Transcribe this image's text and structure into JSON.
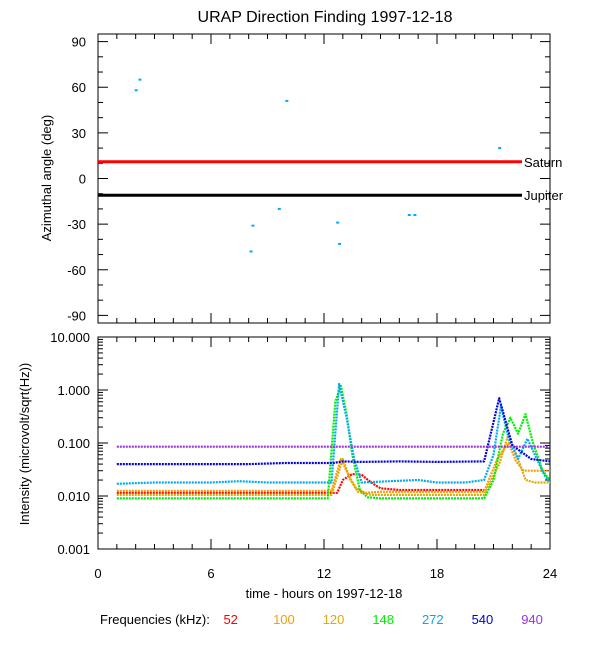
{
  "chart_data": [
    {
      "type": "scatter",
      "title": "URAP Direction Finding  1997-12-18",
      "ylabel": "Azimuthal angle (deg)",
      "xlim": [
        0,
        24
      ],
      "ylim": [
        -95,
        95
      ],
      "y_ticks": [
        90,
        60,
        30,
        0,
        -30,
        -60,
        -90
      ],
      "y_tick_labels": [
        "90",
        "60",
        "30",
        "0",
        "-30",
        "-60",
        "-90"
      ],
      "reference_lines": [
        {
          "name": "Saturn",
          "y": 11,
          "color": "#ff0000"
        },
        {
          "name": "Jupiter",
          "y": -11,
          "color": "#000000"
        }
      ],
      "points": [
        {
          "x": 2.0,
          "y": 58
        },
        {
          "x": 2.2,
          "y": 65
        },
        {
          "x": 10.0,
          "y": 51
        },
        {
          "x": 21.3,
          "y": 20
        },
        {
          "x": 8.1,
          "y": -48
        },
        {
          "x": 8.2,
          "y": -31
        },
        {
          "x": 9.6,
          "y": -20
        },
        {
          "x": 12.7,
          "y": -29
        },
        {
          "x": 12.8,
          "y": -43
        },
        {
          "x": 16.5,
          "y": -24
        },
        {
          "x": 16.8,
          "y": -24
        }
      ],
      "point_color": "#00aaff"
    },
    {
      "type": "line",
      "ylabel": "Intensity (microvolt/sqrt(Hz))",
      "xlabel": "time - hours on 1997-12-18",
      "yscale": "log",
      "ylim": [
        0.001,
        10
      ],
      "y_ticks": [
        10,
        1,
        0.1,
        0.01,
        0.001
      ],
      "y_tick_labels": [
        "10.000",
        "1.000",
        "0.100",
        "0.010",
        "0.001"
      ],
      "x_ticks": [
        0,
        6,
        12,
        18,
        24
      ],
      "x_tick_labels": [
        "0",
        "6",
        "12",
        "18",
        "24"
      ],
      "series": [
        {
          "name": "52",
          "color": "#ff0000",
          "x": [
            1,
            12.4,
            12.7,
            13.0,
            13.5,
            14.0,
            14.5,
            15.0,
            16.0,
            18.0,
            20.5
          ],
          "y": [
            0.0115,
            0.0115,
            0.0115,
            0.02,
            0.026,
            0.025,
            0.018,
            0.014,
            0.013,
            0.013,
            0.013
          ]
        },
        {
          "name": "100",
          "color": "#ff9900",
          "x": [
            1,
            12.4,
            12.9,
            13.3,
            13.7,
            14.2,
            15.0,
            17.0,
            19.0,
            20.5,
            21.2,
            21.8,
            22.2,
            22.6,
            23.0,
            23.5,
            24
          ],
          "y": [
            0.0125,
            0.0125,
            0.05,
            0.025,
            0.014,
            0.0115,
            0.012,
            0.012,
            0.012,
            0.012,
            0.05,
            0.1,
            0.045,
            0.03,
            0.03,
            0.03,
            0.03
          ]
        },
        {
          "name": "120",
          "color": "#ddaa00",
          "x": [
            1,
            12.4,
            13.0,
            13.4,
            13.8,
            14.5,
            16.0,
            18.5,
            20.5,
            21.3,
            21.8,
            22.3,
            22.7,
            23.2,
            24
          ],
          "y": [
            0.0105,
            0.0105,
            0.05,
            0.02,
            0.012,
            0.0105,
            0.0105,
            0.0105,
            0.0105,
            0.04,
            0.15,
            0.05,
            0.02,
            0.018,
            0.018
          ]
        },
        {
          "name": "148",
          "color": "#00ee00",
          "x": [
            1,
            12.2,
            12.6,
            12.9,
            13.2,
            13.5,
            13.9,
            14.3,
            15.0,
            16.5,
            18.5,
            20.5,
            21.0,
            21.5,
            21.9,
            22.3,
            22.7,
            23.1,
            23.6,
            24
          ],
          "y": [
            0.009,
            0.009,
            0.6,
            1.2,
            0.35,
            0.06,
            0.013,
            0.0095,
            0.009,
            0.009,
            0.009,
            0.009,
            0.02,
            0.15,
            0.3,
            0.15,
            0.35,
            0.1,
            0.03,
            0.02
          ]
        },
        {
          "name": "272",
          "color": "#00aaee",
          "x": [
            1,
            3,
            6,
            7.5,
            9,
            11,
            12.4,
            12.8,
            13.2,
            13.6,
            14.0,
            15.5,
            17.0,
            18.0,
            19.5,
            20.5,
            21.0,
            21.4,
            21.8,
            22.3,
            22.8,
            23.2,
            23.7,
            24
          ],
          "y": [
            0.017,
            0.018,
            0.018,
            0.019,
            0.018,
            0.018,
            0.018,
            1.3,
            0.3,
            0.05,
            0.018,
            0.019,
            0.02,
            0.018,
            0.018,
            0.02,
            0.06,
            0.5,
            0.12,
            0.05,
            0.12,
            0.06,
            0.025,
            0.018
          ]
        },
        {
          "name": "540",
          "color": "#0000dd",
          "x": [
            1,
            4,
            8,
            10,
            12.5,
            13,
            14,
            16,
            18,
            20.5,
            21.3,
            22,
            23,
            24
          ],
          "y": [
            0.04,
            0.04,
            0.04,
            0.042,
            0.042,
            0.045,
            0.044,
            0.045,
            0.044,
            0.045,
            0.7,
            0.09,
            0.05,
            0.045
          ]
        },
        {
          "name": "940",
          "color": "#9933dd",
          "x": [
            1,
            6,
            12,
            18,
            20.5,
            21.5,
            22.5,
            24
          ],
          "y": [
            0.085,
            0.085,
            0.085,
            0.085,
            0.085,
            0.085,
            0.085,
            0.085
          ]
        }
      ]
    }
  ],
  "legend": {
    "label": "Frequencies (kHz):",
    "items": [
      {
        "label": "52",
        "color": "#ff0000"
      },
      {
        "label": "100",
        "color": "#ff9900"
      },
      {
        "label": "120",
        "color": "#ddaa00"
      },
      {
        "label": "148",
        "color": "#00ee00"
      },
      {
        "label": "272",
        "color": "#00aaee"
      },
      {
        "label": "540",
        "color": "#0000dd"
      },
      {
        "label": "940",
        "color": "#9933dd"
      }
    ]
  }
}
